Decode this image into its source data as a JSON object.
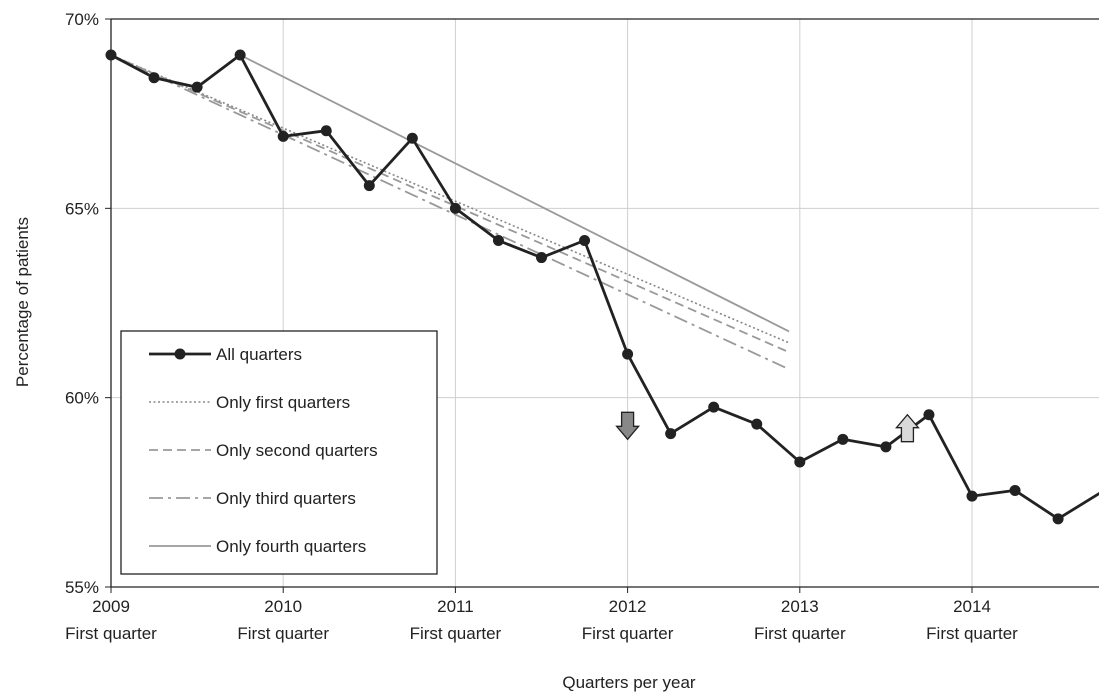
{
  "chart_data": {
    "type": "line",
    "xlabel": "Quarters per year",
    "ylabel": "Percentage of patients",
    "ylim": [
      55,
      70
    ],
    "y_ticks": [
      "55%",
      "60%",
      "65%",
      "70%"
    ],
    "y_tick_values": [
      55,
      60,
      65,
      70
    ],
    "x_ticks": [
      {
        "year": "2009",
        "sub": "First quarter",
        "x": 0
      },
      {
        "year": "2010",
        "sub": "First quarter",
        "x": 4
      },
      {
        "year": "2011",
        "sub": "First quarter",
        "x": 8
      },
      {
        "year": "2012",
        "sub": "First quarter",
        "x": 12
      },
      {
        "year": "2013",
        "sub": "First quarter",
        "x": 16
      },
      {
        "year": "2014",
        "sub": "First quarter",
        "x": 20
      }
    ],
    "xlim": [
      0,
      23
    ],
    "grid": true,
    "legend_position": "bottom-left",
    "series": [
      {
        "name": "All quarters",
        "style": "solid-markers",
        "color": "#222222",
        "x": [
          0,
          1,
          2,
          3,
          4,
          5,
          6,
          7,
          8,
          9,
          10,
          11,
          12,
          13,
          14,
          15,
          16,
          17,
          18,
          19,
          20,
          21,
          22,
          23
        ],
        "values": [
          69.05,
          68.45,
          68.2,
          69.05,
          66.9,
          67.05,
          65.6,
          66.85,
          65.0,
          64.15,
          63.7,
          64.15,
          61.15,
          59.05,
          59.75,
          59.3,
          58.3,
          58.9,
          58.7,
          59.55,
          57.4,
          57.55,
          56.8,
          57.5
        ]
      },
      {
        "name": "Only first quarters",
        "style": "dotted",
        "color": "#888888",
        "x": [
          0,
          15.75
        ],
        "values": [
          69.05,
          61.45
        ]
      },
      {
        "name": "Only second quarters",
        "style": "dashed",
        "color": "#999999",
        "x": [
          0,
          15.75
        ],
        "values": [
          69.05,
          61.2
        ]
      },
      {
        "name": "Only third quarters",
        "style": "dash-dot",
        "color": "#999999",
        "x": [
          0,
          15.75
        ],
        "values": [
          69.05,
          60.75
        ]
      },
      {
        "name": "Only fourth quarters",
        "style": "solid-thin",
        "color": "#999999",
        "x": [
          3,
          15.75
        ],
        "values": [
          69.05,
          61.75
        ]
      }
    ],
    "annotations": [
      {
        "kind": "arrow-down",
        "x": 12,
        "y": 58.9,
        "color": "#888888"
      },
      {
        "kind": "arrow-up",
        "x": 18.5,
        "y": 59.55,
        "color": "#d9d9d9"
      }
    ]
  }
}
